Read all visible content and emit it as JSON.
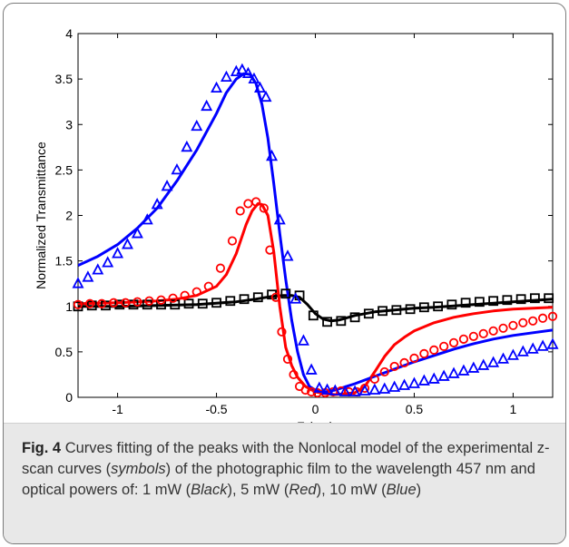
{
  "chart_data": {
    "type": "scatter",
    "title": "",
    "xlabel": "Z (cm)",
    "ylabel": "Normalized Transmittance",
    "xlim": [
      -1.2,
      1.2
    ],
    "ylim": [
      0,
      4
    ],
    "xticks": [
      "-1",
      "-0.5",
      "0",
      "0.5",
      "1"
    ],
    "yticks": [
      "0",
      "0.5",
      "1",
      "1.5",
      "2",
      "2.5",
      "3",
      "3.5",
      "4"
    ],
    "grid": false,
    "colors": {
      "black": "#000000",
      "red": "#ff0000",
      "blue": "#0000ff"
    },
    "series": [
      {
        "marker": "square",
        "color": "#000000",
        "x": [
          -1.2,
          -1.13,
          -1.06,
          -0.99,
          -0.92,
          -0.85,
          -0.78,
          -0.71,
          -0.64,
          -0.57,
          -0.5,
          -0.43,
          -0.36,
          -0.29,
          -0.22,
          -0.15,
          -0.08,
          -0.01,
          0.06,
          0.13,
          0.2,
          0.27,
          0.34,
          0.41,
          0.48,
          0.55,
          0.62,
          0.69,
          0.76,
          0.83,
          0.9,
          0.97,
          1.04,
          1.11,
          1.18
        ],
        "y": [
          1.0,
          1.01,
          1.01,
          1.02,
          1.02,
          1.02,
          1.02,
          1.02,
          1.03,
          1.03,
          1.04,
          1.06,
          1.08,
          1.1,
          1.13,
          1.14,
          1.12,
          0.9,
          0.83,
          0.84,
          0.88,
          0.92,
          0.95,
          0.96,
          0.97,
          0.99,
          1.0,
          1.02,
          1.04,
          1.05,
          1.06,
          1.07,
          1.08,
          1.09,
          1.09
        ]
      },
      {
        "marker": "circle",
        "color": "#ff0000",
        "x": [
          -1.2,
          -1.14,
          -1.08,
          -1.02,
          -0.96,
          -0.9,
          -0.84,
          -0.78,
          -0.72,
          -0.66,
          -0.6,
          -0.54,
          -0.48,
          -0.42,
          -0.38,
          -0.34,
          -0.3,
          -0.26,
          -0.23,
          -0.2,
          -0.17,
          -0.14,
          -0.11,
          -0.08,
          -0.05,
          -0.02,
          0.01,
          0.05,
          0.09,
          0.13,
          0.17,
          0.21,
          0.25,
          0.3,
          0.35,
          0.4,
          0.45,
          0.5,
          0.55,
          0.6,
          0.65,
          0.7,
          0.75,
          0.8,
          0.85,
          0.9,
          0.95,
          1.0,
          1.05,
          1.1,
          1.15,
          1.2
        ],
        "y": [
          1.02,
          1.03,
          1.03,
          1.04,
          1.04,
          1.05,
          1.06,
          1.07,
          1.09,
          1.12,
          1.16,
          1.22,
          1.42,
          1.72,
          2.05,
          2.13,
          2.15,
          2.08,
          1.62,
          1.1,
          0.72,
          0.42,
          0.25,
          0.12,
          0.08,
          0.06,
          0.05,
          0.05,
          0.06,
          0.07,
          0.06,
          0.06,
          0.1,
          0.2,
          0.28,
          0.34,
          0.38,
          0.43,
          0.48,
          0.52,
          0.56,
          0.6,
          0.64,
          0.67,
          0.7,
          0.73,
          0.76,
          0.79,
          0.82,
          0.84,
          0.87,
          0.89
        ]
      },
      {
        "marker": "triangle",
        "color": "#0000ff",
        "x": [
          -1.2,
          -1.15,
          -1.1,
          -1.05,
          -1.0,
          -0.95,
          -0.9,
          -0.85,
          -0.8,
          -0.75,
          -0.7,
          -0.65,
          -0.6,
          -0.55,
          -0.5,
          -0.45,
          -0.4,
          -0.37,
          -0.34,
          -0.31,
          -0.28,
          -0.25,
          -0.22,
          -0.18,
          -0.14,
          -0.1,
          -0.06,
          -0.02,
          0.02,
          0.06,
          0.1,
          0.15,
          0.2,
          0.25,
          0.3,
          0.35,
          0.4,
          0.45,
          0.5,
          0.55,
          0.6,
          0.65,
          0.7,
          0.75,
          0.8,
          0.85,
          0.9,
          0.95,
          1.0,
          1.05,
          1.1,
          1.15,
          1.2
        ],
        "y": [
          1.25,
          1.32,
          1.4,
          1.48,
          1.58,
          1.68,
          1.8,
          1.95,
          2.12,
          2.32,
          2.5,
          2.75,
          2.98,
          3.2,
          3.4,
          3.52,
          3.58,
          3.6,
          3.56,
          3.5,
          3.4,
          3.3,
          2.65,
          1.95,
          1.55,
          1.08,
          0.62,
          0.3,
          0.1,
          0.08,
          0.07,
          0.06,
          0.06,
          0.07,
          0.08,
          0.09,
          0.11,
          0.13,
          0.15,
          0.18,
          0.2,
          0.23,
          0.26,
          0.29,
          0.32,
          0.35,
          0.38,
          0.42,
          0.46,
          0.5,
          0.53,
          0.56,
          0.58
        ]
      }
    ],
    "fits": [
      {
        "color": "#000000",
        "x": [
          -1.2,
          -1.0,
          -0.8,
          -0.6,
          -0.4,
          -0.3,
          -0.22,
          -0.16,
          -0.12,
          -0.08,
          -0.04,
          0.0,
          0.04,
          0.08,
          0.12,
          0.2,
          0.3,
          0.4,
          0.5,
          0.6,
          0.8,
          1.0,
          1.2
        ],
        "y": [
          1.0,
          1.0,
          1.01,
          1.02,
          1.05,
          1.08,
          1.11,
          1.12,
          1.12,
          1.1,
          1.02,
          0.92,
          0.86,
          0.84,
          0.85,
          0.9,
          0.94,
          0.96,
          0.98,
          0.99,
          1.02,
          1.05,
          1.08
        ]
      },
      {
        "color": "#ff0000",
        "x": [
          -1.2,
          -1.0,
          -0.8,
          -0.7,
          -0.6,
          -0.5,
          -0.45,
          -0.4,
          -0.35,
          -0.32,
          -0.29,
          -0.27,
          -0.24,
          -0.21,
          -0.18,
          -0.15,
          -0.12,
          -0.09,
          -0.05,
          0.0,
          0.05,
          0.1,
          0.15,
          0.2,
          0.25,
          0.3,
          0.35,
          0.4,
          0.45,
          0.5,
          0.6,
          0.7,
          0.8,
          0.9,
          1.0,
          1.1,
          1.2
        ],
        "y": [
          1.03,
          1.04,
          1.06,
          1.08,
          1.12,
          1.22,
          1.35,
          1.58,
          1.9,
          2.05,
          2.13,
          2.12,
          2.0,
          1.6,
          1.0,
          0.55,
          0.35,
          0.22,
          0.12,
          0.06,
          0.04,
          0.03,
          0.04,
          0.05,
          0.12,
          0.28,
          0.45,
          0.58,
          0.66,
          0.73,
          0.82,
          0.88,
          0.92,
          0.95,
          0.97,
          0.98,
          0.99
        ]
      },
      {
        "color": "#0000ff",
        "x": [
          -1.2,
          -1.1,
          -1.0,
          -0.9,
          -0.8,
          -0.7,
          -0.6,
          -0.5,
          -0.45,
          -0.4,
          -0.36,
          -0.33,
          -0.3,
          -0.27,
          -0.24,
          -0.21,
          -0.18,
          -0.15,
          -0.12,
          -0.09,
          -0.06,
          -0.03,
          0.0,
          0.05,
          0.1,
          0.2,
          0.3,
          0.4,
          0.5,
          0.6,
          0.7,
          0.8,
          0.9,
          1.0,
          1.1,
          1.2
        ],
        "y": [
          1.45,
          1.55,
          1.68,
          1.86,
          2.08,
          2.38,
          2.72,
          3.12,
          3.35,
          3.5,
          3.56,
          3.55,
          3.45,
          3.22,
          2.85,
          2.35,
          1.8,
          1.3,
          0.85,
          0.5,
          0.25,
          0.12,
          0.08,
          0.06,
          0.08,
          0.15,
          0.23,
          0.31,
          0.39,
          0.46,
          0.53,
          0.59,
          0.64,
          0.68,
          0.71,
          0.74
        ]
      }
    ]
  },
  "caption": {
    "label": "Fig. 4",
    "text_before": "Curves fitting of the peaks with the Nonlocal model of the experimental z-scan curves (",
    "symbols": "symbols",
    "text_middle": ") of the photographic film to the wavelength 457 nm and optical powers of: 1 mW (",
    "black": "Black",
    "sep1": "), 5 mW (",
    "red": "Red",
    "sep2": "), 10 mW (",
    "blue": "Blue",
    "end": ")"
  }
}
